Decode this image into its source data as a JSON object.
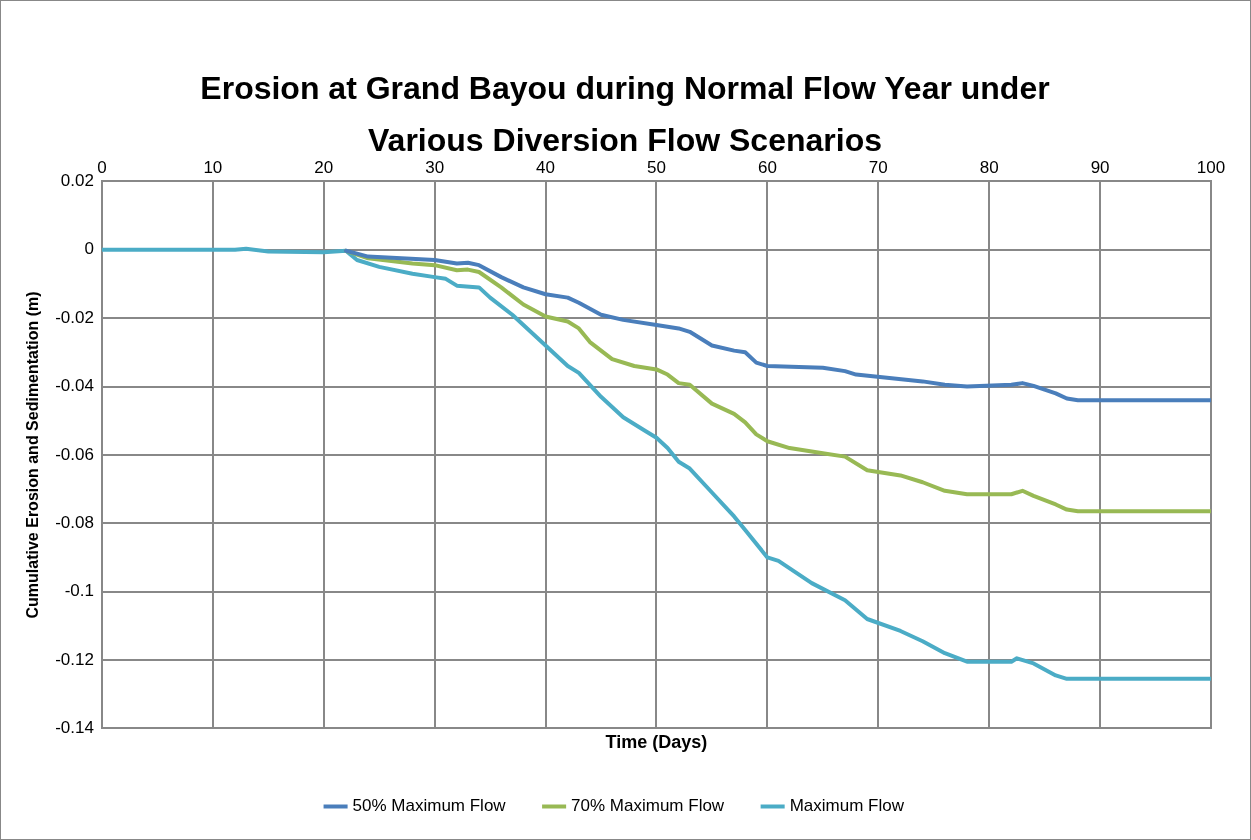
{
  "chart_data": {
    "type": "line",
    "title": "Erosion at Grand Bayou during Normal Flow Year under Various Diversion Flow Scenarios",
    "xlabel": "Time (Days)",
    "ylabel": "Cumulative Erosion and Sedimentation (m)",
    "xlim": [
      0,
      100
    ],
    "xticks": [
      0,
      10,
      20,
      30,
      40,
      50,
      60,
      70,
      80,
      90,
      100
    ],
    "ylim": [
      -0.14,
      0.02
    ],
    "yticks": [
      -0.14,
      -0.12,
      -0.1,
      -0.08,
      -0.06,
      -0.04,
      -0.02,
      0,
      0.02
    ],
    "grid": true,
    "legend": "bottom",
    "marker": "none",
    "line_style": "solid",
    "series": [
      {
        "name": "50% Maximum Flow",
        "color": "#4a7ebb",
        "x": [
          22,
          24,
          27,
          30,
          32,
          33,
          34,
          36,
          38,
          40,
          42,
          43,
          45,
          47,
          50,
          52,
          53,
          55,
          57,
          58,
          59,
          60,
          65,
          67,
          68,
          71,
          74,
          76,
          78,
          82,
          83,
          84,
          86,
          87,
          88,
          100
        ],
        "values": [
          -0.0003,
          -0.002,
          -0.0025,
          -0.003,
          -0.004,
          -0.0038,
          -0.0045,
          -0.008,
          -0.011,
          -0.013,
          -0.014,
          -0.0155,
          -0.019,
          -0.0205,
          -0.022,
          -0.023,
          -0.024,
          -0.028,
          -0.0295,
          -0.03,
          -0.033,
          -0.034,
          -0.0345,
          -0.0355,
          -0.0365,
          -0.0375,
          -0.0385,
          -0.0395,
          -0.04,
          -0.0395,
          -0.039,
          -0.0398,
          -0.042,
          -0.0435,
          -0.044,
          -0.044
        ]
      },
      {
        "name": "70% Maximum Flow",
        "color": "#98b954",
        "x": [
          22,
          24,
          28,
          30,
          32,
          33,
          34,
          36,
          38,
          40,
          42,
          43,
          44,
          46,
          48,
          50,
          51,
          52,
          53,
          55,
          57,
          58,
          59,
          60,
          62,
          65,
          67,
          69,
          72,
          74,
          76,
          78,
          80,
          82,
          83,
          84,
          86,
          87,
          88,
          100
        ],
        "values": [
          -0.0003,
          -0.0025,
          -0.004,
          -0.0045,
          -0.006,
          -0.0058,
          -0.0065,
          -0.011,
          -0.016,
          -0.0195,
          -0.021,
          -0.023,
          -0.027,
          -0.032,
          -0.034,
          -0.035,
          -0.0365,
          -0.039,
          -0.0395,
          -0.045,
          -0.048,
          -0.0505,
          -0.054,
          -0.056,
          -0.058,
          -0.0595,
          -0.0605,
          -0.0645,
          -0.066,
          -0.068,
          -0.0705,
          -0.0715,
          -0.0715,
          -0.0715,
          -0.0705,
          -0.072,
          -0.0745,
          -0.076,
          -0.0765,
          -0.0765
        ]
      },
      {
        "name": "Maximum Flow",
        "color": "#4bacc6",
        "x": [
          0,
          12,
          13,
          15,
          20,
          22,
          23,
          25,
          28,
          30,
          31,
          32,
          34,
          35,
          37,
          40,
          42,
          43,
          45,
          47,
          49,
          50,
          51,
          52,
          53,
          55,
          57,
          58,
          60,
          61,
          64,
          67,
          69,
          72,
          74,
          76,
          78,
          82,
          82.5,
          84,
          86,
          87,
          100
        ],
        "values": [
          0,
          0,
          0.0003,
          -0.0005,
          -0.0007,
          -0.0003,
          -0.003,
          -0.005,
          -0.007,
          -0.008,
          -0.0085,
          -0.0105,
          -0.011,
          -0.014,
          -0.019,
          -0.028,
          -0.034,
          -0.036,
          -0.043,
          -0.049,
          -0.053,
          -0.055,
          -0.058,
          -0.062,
          -0.064,
          -0.071,
          -0.078,
          -0.082,
          -0.09,
          -0.091,
          -0.0975,
          -0.1025,
          -0.108,
          -0.1115,
          -0.1145,
          -0.118,
          -0.1205,
          -0.1205,
          -0.1195,
          -0.121,
          -0.1245,
          -0.1255,
          -0.1255
        ]
      }
    ]
  }
}
